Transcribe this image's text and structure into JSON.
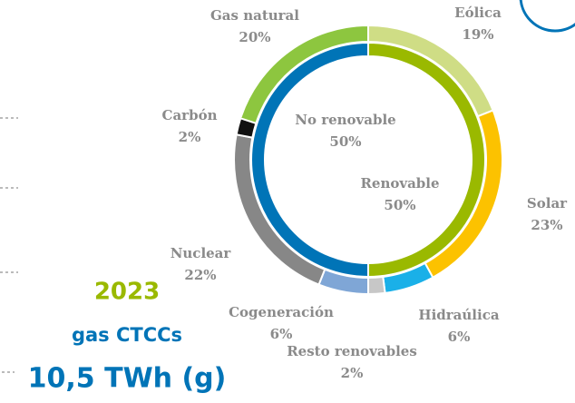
{
  "chart_data": {
    "type": "donut",
    "rings": [
      {
        "categories": [
          "Eólica",
          "Solar",
          "Hidraúlica",
          "Resto renovables",
          "Cogeneración",
          "Nuclear",
          "Carbón",
          "Gas natural"
        ],
        "values": [
          19,
          23,
          6,
          2,
          6,
          22,
          2,
          20
        ],
        "value_labels": [
          "19%",
          "23%",
          "6%",
          "2%",
          "6%",
          "22%",
          "2%",
          "20%"
        ],
        "colors": [
          "#cfdd85",
          "#fcc200",
          "#1ab0e8",
          "#c7c7c7",
          "#7fa6d6",
          "#878787",
          "#111111",
          "#8dc63f"
        ]
      },
      {
        "categories": [
          "Renovable",
          "No renovable"
        ],
        "values": [
          50,
          50
        ],
        "value_labels": [
          "50%",
          "50%"
        ],
        "colors": [
          "#9ab900",
          "#0074b7"
        ]
      }
    ]
  },
  "panel": {
    "year": "2023",
    "technology": "gas CTCCs",
    "amount": "10,5 TWh (g)"
  }
}
